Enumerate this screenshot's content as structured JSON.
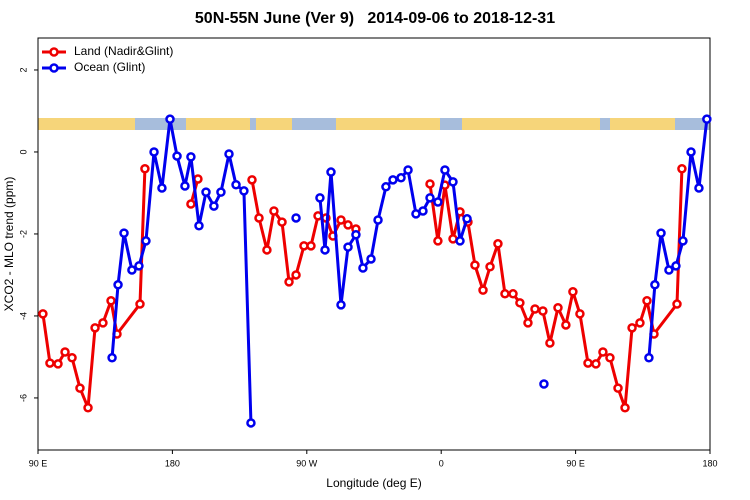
{
  "chart_data": {
    "type": "line",
    "title": "50N-55N June (Ver 9)   2014-09-06 to 2018-12-31",
    "xlabel": "Longitude (deg E)",
    "ylabel": "XCO2 - MLO trend (ppm)",
    "xlim": [
      90,
      540
    ],
    "ylim": [
      -7.27,
      2.78
    ],
    "xticks": [
      {
        "value": 90,
        "label": "90 E"
      },
      180,
      {
        "value": 270,
        "label": "90 W"
      },
      {
        "value": 360,
        "label": "0"
      },
      {
        "value": 450,
        "label": "90 E"
      },
      {
        "value": 540,
        "label": "180"
      }
    ],
    "yticks": [
      2,
      0,
      -2,
      -4,
      -6
    ],
    "grid": false,
    "legend": "top-left",
    "series": [
      {
        "name": "Land (Nadir&Glint)",
        "color": "#ee0000",
        "x": [
          93.3,
          98.0,
          103.4,
          108.1,
          112.8,
          118.1,
          123.5,
          128.2,
          133.5,
          138.9,
          142.9,
          158.3,
          161.6,
          null,
          192.4,
          197.1,
          null,
          233.3,
          238.0,
          243.3,
          248.0,
          253.4,
          258.1,
          262.8,
          268.1,
          272.8,
          277.5,
          282.8,
          287.5,
          292.9,
          297.6,
          302.9,
          null,
          352.5,
          357.8,
          362.5,
          367.9,
          372.6,
          377.9,
          382.6,
          388.0,
          392.7,
          398.0,
          402.7,
          408.1,
          412.7,
          418.1,
          422.8,
          428.1,
          432.8,
          438.2,
          443.5,
          448.2,
          452.9,
          458.3,
          463.6,
          468.3,
          473.0,
          478.4,
          483.1,
          487.8,
          493.1,
          497.8,
          502.5,
          517.9,
          521.2
        ],
        "values": [
          -3.95,
          -5.15,
          -5.17,
          -4.88,
          -5.02,
          -5.76,
          -6.24,
          -4.29,
          -4.17,
          -3.63,
          -4.44,
          -3.71,
          -0.41,
          null,
          -1.27,
          -0.66,
          null,
          -0.68,
          -1.61,
          -2.39,
          -1.44,
          -1.71,
          -3.17,
          -3.0,
          -2.29,
          -2.29,
          -1.56,
          -1.61,
          -2.05,
          -1.66,
          -1.78,
          -1.88,
          null,
          -0.78,
          -2.17,
          -0.81,
          -2.12,
          -1.46,
          -1.71,
          -2.76,
          -3.37,
          -2.8,
          -2.24,
          -3.46,
          -3.46,
          -3.68,
          -4.17,
          -3.83,
          -3.88,
          -4.66,
          -3.8,
          -4.22,
          -3.41,
          -3.95,
          -5.15,
          -5.17,
          -4.88,
          -5.02,
          -5.76,
          -6.24,
          -4.29,
          -4.17,
          -3.63,
          -4.44,
          -3.71,
          -0.41
        ]
      },
      {
        "name": "Ocean (Glint)",
        "color": "#0000ee",
        "x": [
          139.6,
          143.6,
          147.6,
          152.9,
          157.6,
          162.3,
          167.7,
          173.0,
          178.4,
          183.1,
          188.4,
          192.4,
          197.8,
          202.5,
          207.8,
          212.5,
          217.9,
          222.6,
          227.9,
          232.6,
          null,
          262.8,
          null,
          278.8,
          282.2,
          286.2,
          292.9,
          297.6,
          302.9,
          307.6,
          313.0,
          317.7,
          323.0,
          327.7,
          333.1,
          337.8,
          343.1,
          347.8,
          352.5,
          357.8,
          362.5,
          367.9,
          372.6,
          377.3,
          null,
          428.8,
          null,
          499.1,
          503.1,
          507.2,
          512.5,
          517.2,
          521.9,
          527.3,
          532.6,
          537.9
        ],
        "values": [
          -5.02,
          -3.24,
          -1.98,
          -2.88,
          -2.78,
          -2.17,
          0.0,
          -0.88,
          0.8,
          -0.1,
          -0.83,
          -0.12,
          -1.8,
          -0.98,
          -1.32,
          -0.98,
          -0.05,
          -0.8,
          -0.95,
          -6.61,
          null,
          -1.61,
          null,
          -1.12,
          -2.39,
          -0.49,
          -3.73,
          -2.32,
          -2.02,
          -2.83,
          -2.61,
          -1.66,
          -0.85,
          -0.68,
          -0.63,
          -0.44,
          -1.51,
          -1.44,
          -1.12,
          -1.22,
          -0.44,
          -0.73,
          -2.17,
          -1.63,
          null,
          -5.66,
          null,
          -5.02,
          -3.24,
          -1.98,
          -2.88,
          -2.78,
          -2.17,
          0.0,
          -0.88,
          0.8
        ]
      }
    ]
  }
}
